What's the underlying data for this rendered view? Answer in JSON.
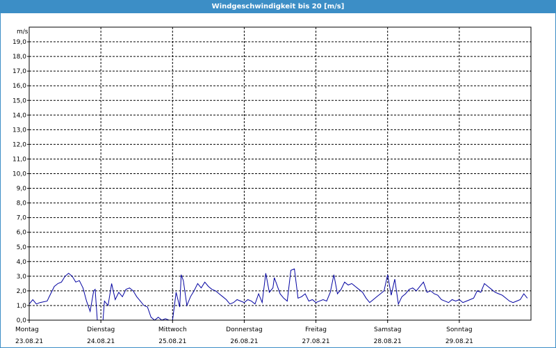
{
  "window": {
    "title": "Windgeschwindigkeit bis 20 [m/s]"
  },
  "colors": {
    "title_bar": "#3c8ec6",
    "series_line": "#0000a0",
    "grid": "#000000",
    "frame": "#3c8ec6"
  },
  "chart_data": {
    "type": "line",
    "title": "Windgeschwindigkeit bis 20 [m/s]",
    "ylabel": "m/s",
    "ylim": [
      0,
      20
    ],
    "y_ticks": [
      "0,0",
      "1,0",
      "2,0",
      "3,0",
      "4,0",
      "5,0",
      "6,0",
      "7,0",
      "8,0",
      "9,0",
      "10,0",
      "11,0",
      "12,0",
      "13,0",
      "14,0",
      "15,0",
      "16,0",
      "17,0",
      "18,0",
      "19,0"
    ],
    "x_unit": "days",
    "xlim": [
      0,
      7
    ],
    "grid": true,
    "x_ticks": [
      {
        "day": "Montag",
        "date": "23.08.21"
      },
      {
        "day": "Dienstag",
        "date": "24.08.21"
      },
      {
        "day": "Mittwoch",
        "date": "25.08.21"
      },
      {
        "day": "Donnerstag",
        "date": "26.08.21"
      },
      {
        "day": "Freitag",
        "date": "27.08.21"
      },
      {
        "day": "Samstag",
        "date": "28.08.21"
      },
      {
        "day": "Sonntag",
        "date": "29.08.21"
      }
    ],
    "series": [
      {
        "x": [
          0.0,
          0.05,
          0.1,
          0.15,
          0.25,
          0.3,
          0.35,
          0.4,
          0.45,
          0.5,
          0.55,
          0.6,
          0.65,
          0.7,
          0.75,
          0.8,
          0.85,
          0.9,
          0.92,
          0.95,
          1.0,
          1.03,
          1.05,
          1.1,
          1.15,
          1.2,
          1.25,
          1.3,
          1.35,
          1.4,
          1.45,
          1.5,
          1.55,
          1.6,
          1.65,
          1.7,
          1.75,
          1.8,
          1.85,
          1.9,
          1.95,
          2.0,
          2.05,
          2.1,
          2.12,
          2.15,
          2.2,
          2.25,
          2.3,
          2.35,
          2.4,
          2.45,
          2.5,
          2.55,
          2.6,
          2.65,
          2.7,
          2.75,
          2.8,
          2.85,
          2.9,
          2.95,
          3.0,
          3.05,
          3.1,
          3.15,
          3.2,
          3.25,
          3.3,
          3.35,
          3.4,
          3.42,
          3.45,
          3.5,
          3.55,
          3.6,
          3.65,
          3.7,
          3.75,
          3.8,
          3.85,
          3.9,
          3.95,
          4.0,
          4.05,
          4.1,
          4.15,
          4.2,
          4.25,
          4.3,
          4.35,
          4.4,
          4.45,
          4.5,
          4.55,
          4.6,
          4.65,
          4.7,
          4.75,
          4.8,
          4.85,
          4.9,
          4.95,
          5.0,
          5.05,
          5.1,
          5.15,
          5.2,
          5.25,
          5.3,
          5.35,
          5.4,
          5.45,
          5.5,
          5.55,
          5.6,
          5.65,
          5.7,
          5.75,
          5.8,
          5.85,
          5.9,
          5.95,
          6.0,
          6.05,
          6.1,
          6.15,
          6.2,
          6.25,
          6.3,
          6.35,
          6.4,
          6.45,
          6.5,
          6.55,
          6.6,
          6.65,
          6.7,
          6.75,
          6.8,
          6.85,
          6.9,
          6.95
        ],
        "y": [
          1.1,
          1.4,
          1.1,
          1.2,
          1.3,
          1.8,
          2.3,
          2.5,
          2.6,
          3.0,
          3.2,
          3.0,
          2.6,
          2.7,
          2.2,
          1.3,
          0.6,
          2.0,
          2.1,
          0.0,
          0.0,
          0.0,
          1.3,
          1.0,
          2.5,
          1.4,
          1.9,
          1.6,
          2.1,
          2.2,
          2.0,
          1.6,
          1.3,
          1.0,
          0.9,
          0.2,
          0.0,
          0.2,
          0.0,
          0.1,
          0.0,
          0.0,
          1.9,
          0.9,
          3.1,
          2.7,
          1.0,
          1.6,
          2.0,
          2.5,
          2.2,
          2.6,
          2.3,
          2.1,
          2.0,
          1.8,
          1.6,
          1.4,
          1.1,
          1.2,
          1.4,
          1.3,
          1.2,
          1.4,
          1.3,
          1.1,
          1.8,
          1.2,
          3.2,
          1.9,
          2.2,
          2.9,
          2.5,
          1.8,
          1.5,
          1.3,
          3.4,
          3.5,
          1.5,
          1.6,
          1.8,
          1.3,
          1.4,
          1.2,
          1.3,
          1.4,
          1.3,
          1.9,
          3.1,
          1.8,
          2.1,
          2.6,
          2.4,
          2.5,
          2.3,
          2.1,
          1.9,
          1.5,
          1.2,
          1.4,
          1.6,
          1.8,
          2.0,
          3.1,
          1.7,
          2.8,
          1.1,
          1.6,
          1.8,
          2.1,
          2.2,
          2.0,
          2.3,
          2.6,
          1.9,
          2.0,
          1.8,
          1.7,
          1.4,
          1.3,
          1.2,
          1.4,
          1.3,
          1.4,
          1.2,
          1.3,
          1.4,
          1.5,
          2.0,
          1.9,
          2.5,
          2.3,
          2.1,
          1.9,
          1.8,
          1.7,
          1.5,
          1.3,
          1.2,
          1.3,
          1.4,
          1.8,
          1.5
        ]
      }
    ]
  }
}
